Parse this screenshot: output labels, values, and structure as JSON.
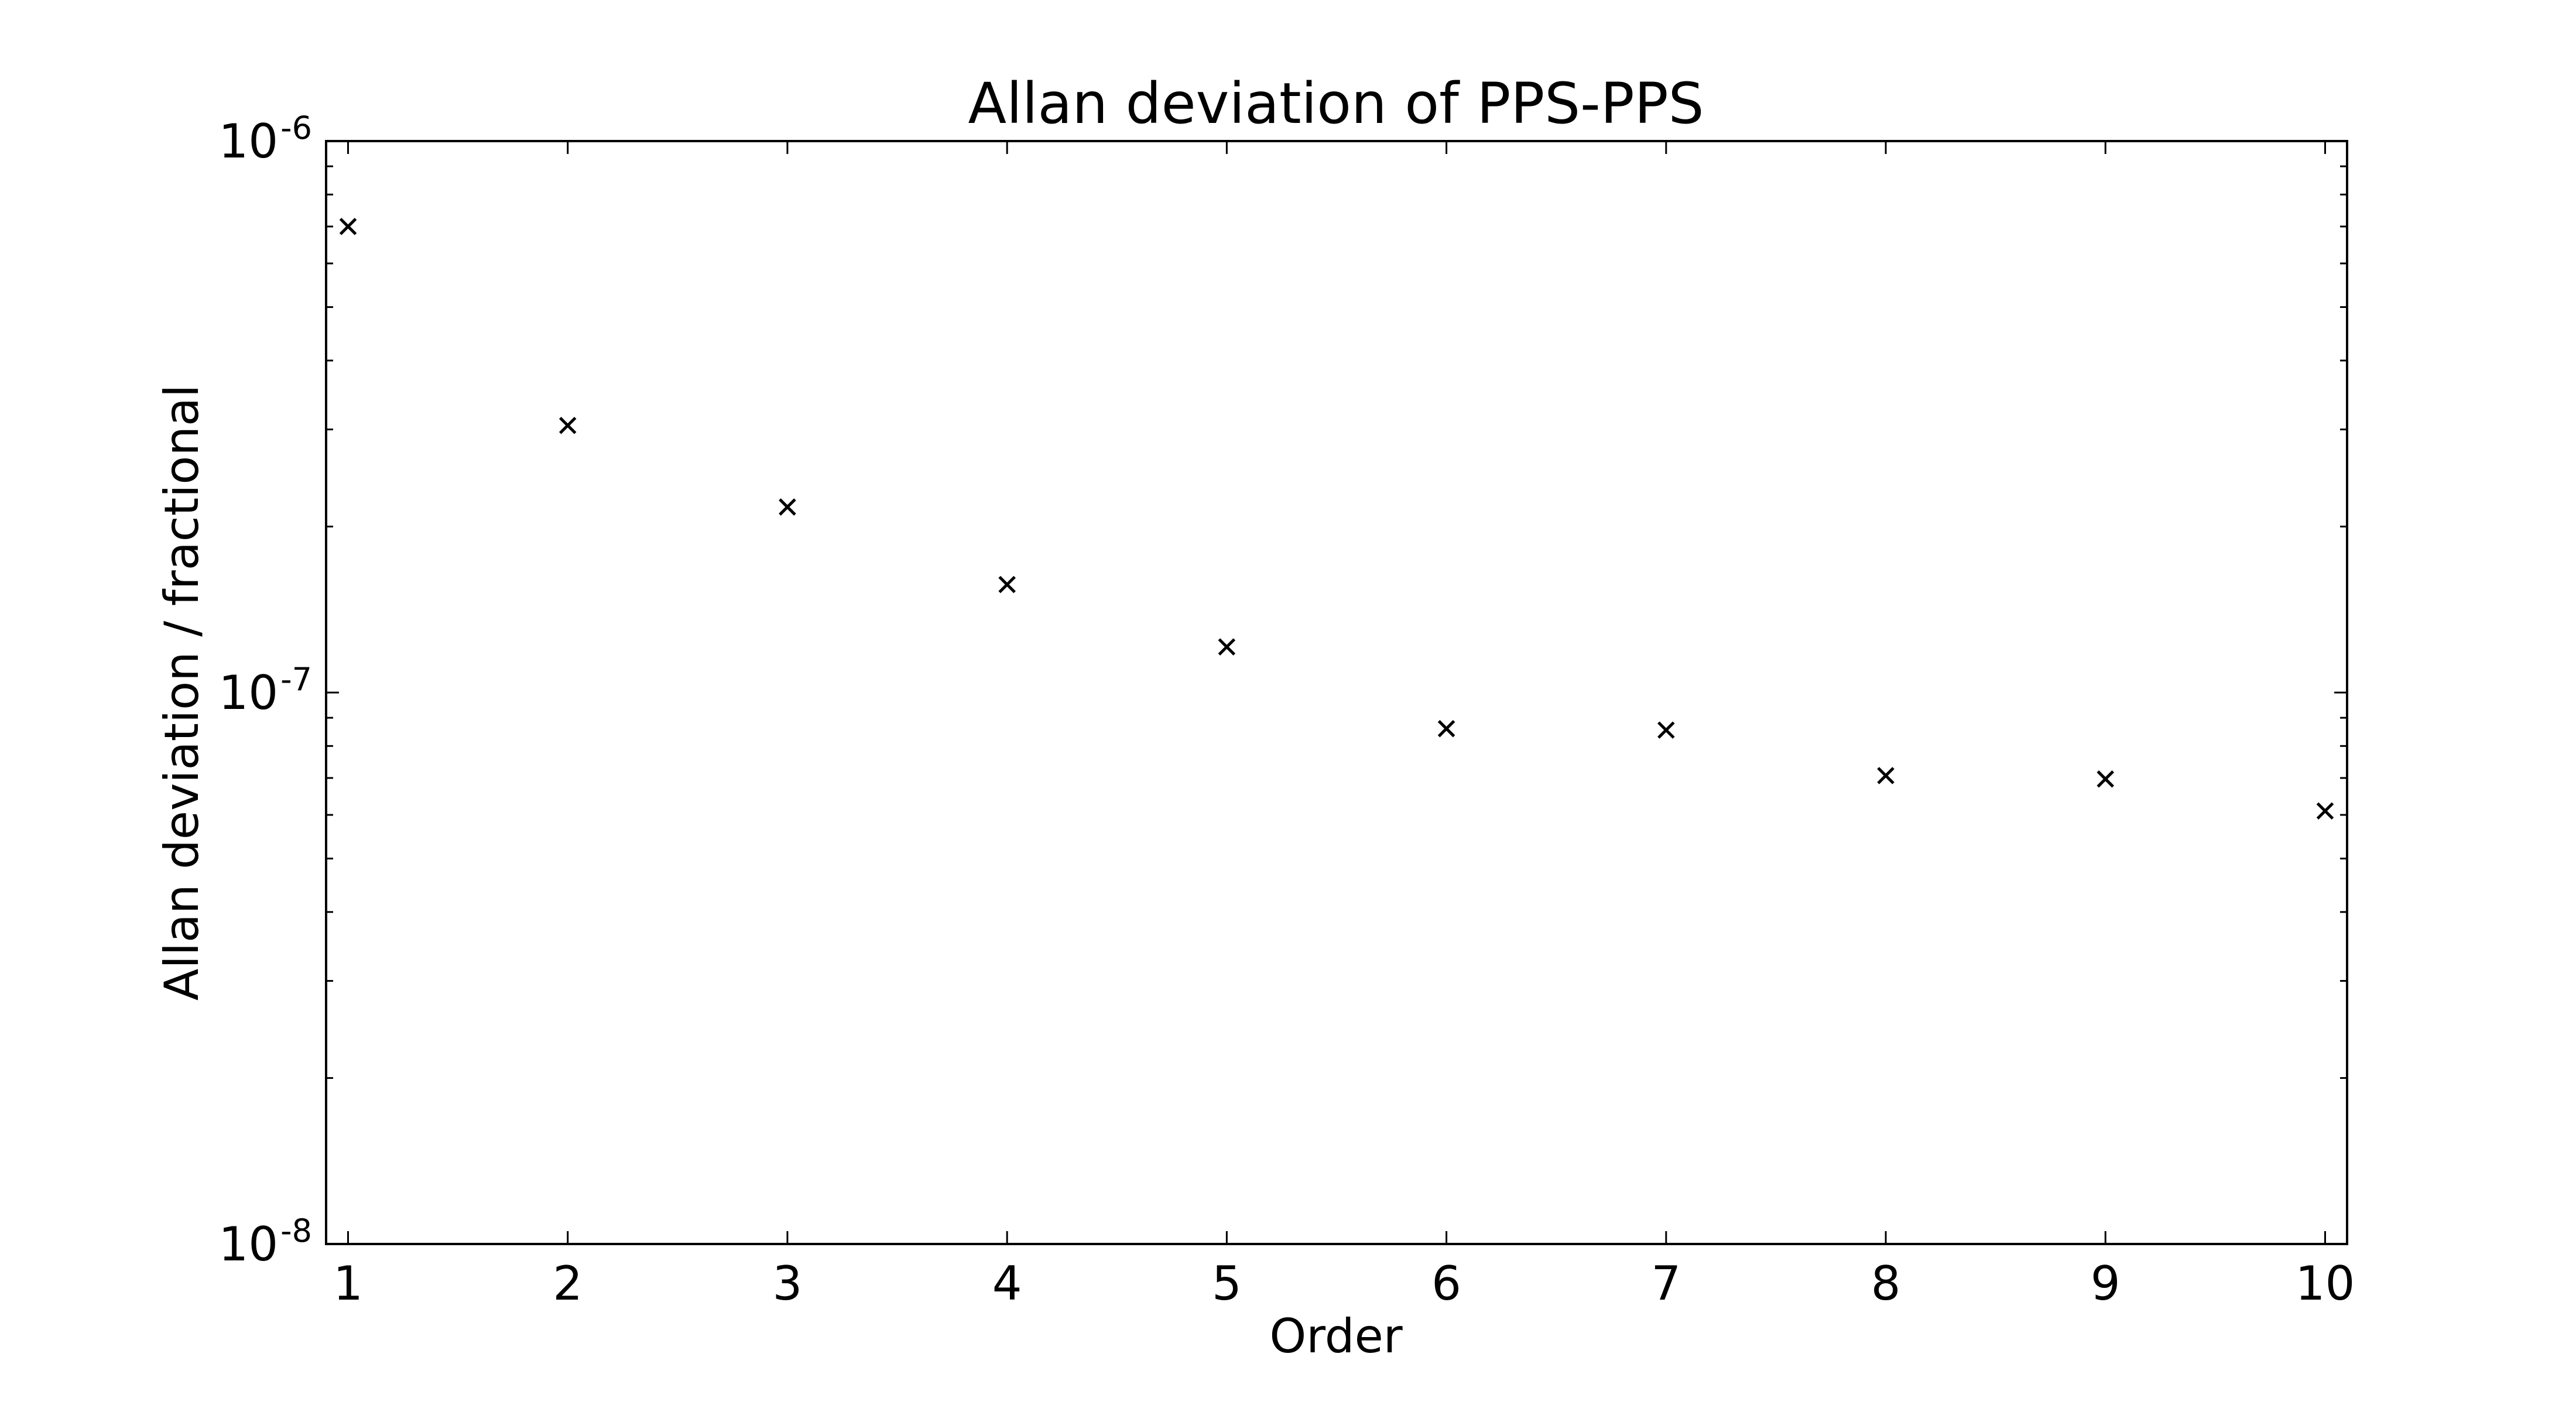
{
  "chart_data": {
    "type": "scatter",
    "title": "Allan deviation of PPS-PPS",
    "xlabel": "Order",
    "ylabel": "Allan deviation / fractional",
    "x_ticks": [
      "1",
      "2",
      "3",
      "4",
      "5",
      "6",
      "7",
      "8",
      "9",
      "10"
    ],
    "y_ticks": [
      {
        "base": "10",
        "exp": "-8",
        "value": 1e-08
      },
      {
        "base": "10",
        "exp": "-7",
        "value": 1e-07
      },
      {
        "base": "10",
        "exp": "-6",
        "value": 1e-06
      }
    ],
    "xlim": [
      0.9,
      10.1
    ],
    "ylim": [
      1e-08,
      1e-06
    ],
    "y_scale": "log",
    "marker": "x",
    "marker_color": "#000000",
    "grid": false,
    "series": [
      {
        "x": [
          1,
          2,
          3,
          4,
          5,
          6,
          7,
          8,
          9,
          10
        ],
        "y": [
          7e-07,
          3.05e-07,
          2.17e-07,
          1.57e-07,
          1.21e-07,
          8.6e-08,
          8.55e-08,
          7.07e-08,
          6.97e-08,
          6.1e-08
        ]
      }
    ]
  }
}
